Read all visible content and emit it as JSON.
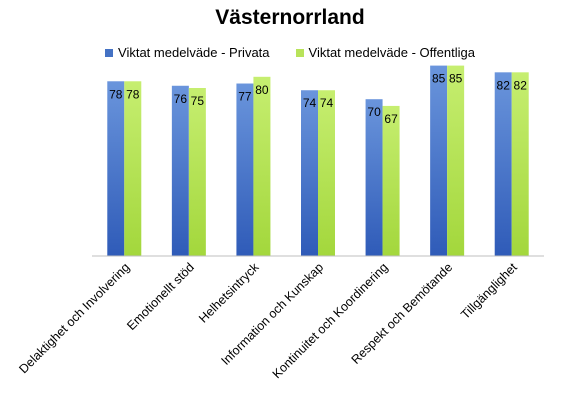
{
  "chart_data": {
    "type": "bar",
    "title": "Västernorrland",
    "categories": [
      "Delaktighet och Involvering",
      "Emotionellt stöd",
      "Helhetsintryck",
      "Information och Kunskap",
      "Kontinuitet och Koordinering",
      "Respekt och Bemötande",
      "Tillgänglighet"
    ],
    "series": [
      {
        "name": "Viktat medelväde - Privata",
        "values": [
          78,
          76,
          77,
          74,
          70,
          85,
          82
        ],
        "color": "#4472C4"
      },
      {
        "name": "Viktat medelväde - Offentliga",
        "values": [
          78,
          75,
          80,
          74,
          67,
          85,
          82
        ],
        "color": "#B8E35A"
      }
    ],
    "ylim": [
      0,
      100
    ],
    "grid": false,
    "legend_position": "top"
  }
}
